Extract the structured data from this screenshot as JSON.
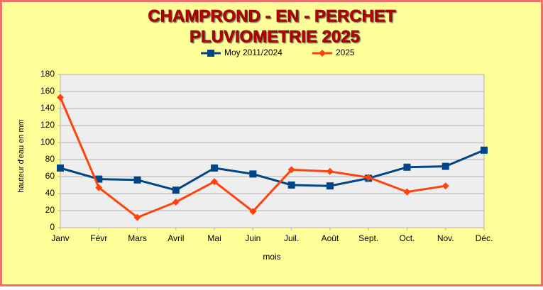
{
  "chart_data": {
    "type": "line",
    "title": "CHAMPROND - EN - PERCHET",
    "subtitle": "PLUVIOMETRIE 2025",
    "x_label": "mois",
    "y_label": "hauteur d'eau en mm",
    "categories": [
      "Janv",
      "Févr",
      "Mars",
      "Avril",
      "Mai",
      "Juin",
      "Juil.",
      "Août",
      "Sept.",
      "Oct.",
      "Nov.",
      "Déc."
    ],
    "series": [
      {
        "name": "Moy 2011/2024",
        "color": "#004586",
        "marker": "square",
        "values": [
          70,
          57,
          56,
          44,
          70,
          63,
          50,
          49,
          58,
          71,
          72,
          91
        ]
      },
      {
        "name": "2025",
        "color": "#ff420e",
        "marker": "diamond",
        "values": [
          153,
          47,
          12,
          30,
          54,
          19,
          68,
          66,
          59,
          42,
          49,
          null
        ]
      }
    ],
    "ylim": [
      0,
      180
    ],
    "yticks": [
      0,
      20,
      40,
      60,
      80,
      100,
      120,
      140,
      160,
      180
    ],
    "grid": true,
    "legend": "top"
  }
}
